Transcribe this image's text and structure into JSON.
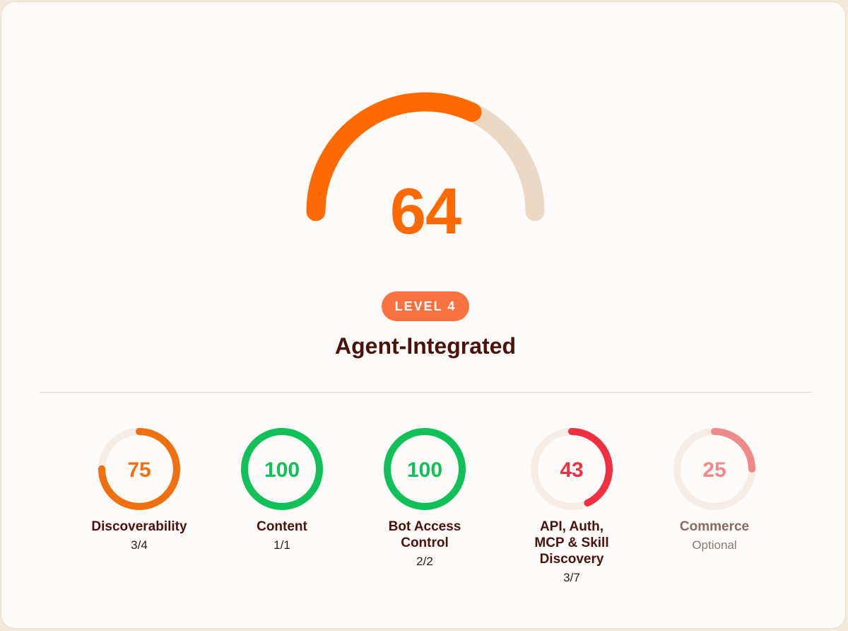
{
  "overall": {
    "score": "64",
    "fraction": 0.64,
    "level_badge": "LEVEL 4",
    "level_name": "Agent-Integrated"
  },
  "categories": [
    {
      "name": "Discoverability",
      "score": "75",
      "fraction": 0.75,
      "detail": "3/4",
      "color": "#f07010"
    },
    {
      "name": "Content",
      "score": "100",
      "fraction": 1.0,
      "detail": "1/1",
      "color": "#12c05a"
    },
    {
      "name": "Bot Access Control",
      "score": "100",
      "fraction": 1.0,
      "detail": "2/2",
      "color": "#12c05a"
    },
    {
      "name": "API, Auth, MCP & Skill Discovery",
      "score": "43",
      "fraction": 0.43,
      "detail": "3/7",
      "color": "#ee3040"
    },
    {
      "name": "Commerce",
      "score": "25",
      "fraction": 0.25,
      "detail": "Optional",
      "color": "#f08a8a"
    }
  ],
  "colors": {
    "accent": "#ff6a00",
    "track": "#ebd9c6",
    "ring_track": "#f5ede6"
  }
}
